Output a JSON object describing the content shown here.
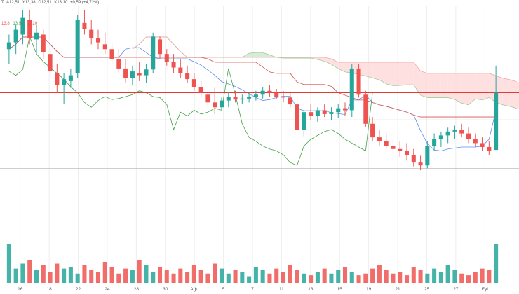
{
  "legend": {
    "symbol": "T",
    "open": "A12,51",
    "high": "Y13,38",
    "low": "D12,51",
    "close": "K13,10",
    "change": "+0,59 (+4,72%)"
  },
  "indicator_values": {
    "v1": "13,8",
    "v2": "13,93",
    "v3": "13,20"
  },
  "colors": {
    "up": "#26a69a",
    "down": "#ef5350",
    "tenkan": "#5b8def",
    "kijun": "#d9534f",
    "chikou": "#43a047",
    "cloud_bull": "#c8e6c9",
    "cloud_bear": "#ffd6d6",
    "price_line": "#e53935",
    "grid": "#eeeeee"
  },
  "chart_data": {
    "type": "candlestick",
    "x_tick_labels": [
      "16",
      "18",
      "22",
      "24",
      "28",
      "30",
      "Ağu",
      "5",
      "7",
      "11",
      "13",
      "15",
      "19",
      "21",
      "25",
      "27",
      "Eyl"
    ],
    "ylim": [
      11.6,
      14.0
    ],
    "grid": true,
    "horizontal_lines": [
      13.1,
      12.82,
      12.32
    ],
    "candles": [
      [
        13.55,
        13.7,
        13.4,
        13.62
      ],
      [
        13.62,
        13.8,
        13.5,
        13.75
      ],
      [
        13.7,
        13.95,
        13.6,
        13.88
      ],
      [
        13.85,
        13.95,
        13.6,
        13.66
      ],
      [
        13.65,
        13.8,
        13.5,
        13.72
      ],
      [
        13.7,
        13.75,
        13.45,
        13.52
      ],
      [
        13.5,
        13.55,
        13.25,
        13.32
      ],
      [
        13.3,
        13.4,
        13.1,
        13.18
      ],
      [
        13.18,
        13.3,
        12.98,
        13.24
      ],
      [
        13.22,
        13.35,
        13.15,
        13.28
      ],
      [
        13.3,
        13.9,
        13.25,
        13.85
      ],
      [
        13.82,
        13.95,
        13.7,
        13.76
      ],
      [
        13.75,
        13.85,
        13.6,
        13.66
      ],
      [
        13.66,
        13.75,
        13.55,
        13.62
      ],
      [
        13.6,
        13.72,
        13.5,
        13.55
      ],
      [
        13.55,
        13.62,
        13.4,
        13.45
      ],
      [
        13.45,
        13.55,
        13.3,
        13.35
      ],
      [
        13.35,
        13.45,
        13.2,
        13.25
      ],
      [
        13.25,
        13.38,
        13.18,
        13.32
      ],
      [
        13.3,
        13.42,
        13.22,
        13.28
      ],
      [
        13.28,
        13.4,
        13.2,
        13.34
      ],
      [
        13.34,
        13.72,
        13.3,
        13.68
      ],
      [
        13.65,
        13.68,
        13.45,
        13.5
      ],
      [
        13.5,
        13.55,
        13.38,
        13.42
      ],
      [
        13.42,
        13.5,
        13.3,
        13.36
      ],
      [
        13.36,
        13.45,
        13.25,
        13.3
      ],
      [
        13.3,
        13.38,
        13.2,
        13.24
      ],
      [
        13.24,
        13.3,
        13.12,
        13.16
      ],
      [
        13.16,
        13.22,
        13.05,
        13.1
      ],
      [
        13.08,
        13.12,
        12.95,
        13.0
      ],
      [
        13.0,
        13.15,
        12.88,
        12.95
      ],
      [
        12.95,
        13.05,
        12.92,
        13.02
      ],
      [
        13.02,
        13.1,
        12.95,
        13.06
      ],
      [
        13.06,
        13.12,
        13.0,
        13.03
      ],
      [
        13.03,
        13.08,
        12.98,
        13.04
      ],
      [
        13.04,
        13.1,
        13.0,
        13.06
      ],
      [
        13.06,
        13.12,
        13.02,
        13.08
      ],
      [
        13.08,
        13.16,
        13.04,
        13.12
      ],
      [
        13.12,
        13.18,
        13.06,
        13.1
      ],
      [
        13.1,
        13.14,
        13.04,
        13.06
      ],
      [
        13.06,
        13.12,
        13.0,
        13.05
      ],
      [
        13.05,
        13.1,
        12.95,
        12.98
      ],
      [
        12.98,
        13.05,
        12.7,
        12.72
      ],
      [
        12.72,
        12.92,
        12.65,
        12.9
      ],
      [
        12.9,
        12.98,
        12.82,
        12.86
      ],
      [
        12.86,
        12.95,
        12.8,
        12.92
      ],
      [
        12.92,
        12.98,
        12.85,
        12.88
      ],
      [
        12.88,
        12.95,
        12.82,
        12.9
      ],
      [
        12.9,
        12.98,
        12.84,
        12.94
      ],
      [
        12.94,
        13.0,
        12.86,
        12.92
      ],
      [
        12.92,
        13.4,
        12.85,
        13.35
      ],
      [
        13.35,
        13.4,
        13.05,
        13.08
      ],
      [
        13.08,
        13.12,
        12.75,
        12.78
      ],
      [
        12.78,
        12.85,
        12.6,
        12.64
      ],
      [
        12.64,
        12.72,
        12.55,
        12.6
      ],
      [
        12.6,
        12.68,
        12.52,
        12.55
      ],
      [
        12.55,
        12.62,
        12.48,
        12.52
      ],
      [
        12.52,
        12.6,
        12.44,
        12.5
      ],
      [
        12.5,
        12.58,
        12.4,
        12.46
      ],
      [
        12.46,
        12.52,
        12.34,
        12.38
      ],
      [
        12.38,
        12.45,
        12.3,
        12.35
      ],
      [
        12.35,
        12.6,
        12.32,
        12.55
      ],
      [
        12.55,
        12.68,
        12.5,
        12.62
      ],
      [
        12.62,
        12.7,
        12.54,
        12.66
      ],
      [
        12.66,
        12.74,
        12.58,
        12.7
      ],
      [
        12.7,
        12.76,
        12.62,
        12.72
      ],
      [
        12.72,
        12.78,
        12.64,
        12.68
      ],
      [
        12.68,
        12.74,
        12.58,
        12.62
      ],
      [
        12.62,
        12.68,
        12.54,
        12.58
      ],
      [
        12.58,
        12.64,
        12.5,
        12.54
      ],
      [
        12.54,
        12.6,
        12.46,
        12.5
      ],
      [
        12.51,
        13.38,
        12.51,
        13.1
      ]
    ],
    "volume": [
      120,
      45,
      60,
      70,
      40,
      55,
      35,
      60,
      45,
      50,
      30,
      55,
      40,
      35,
      65,
      50,
      30,
      45,
      40,
      70,
      55,
      35,
      50,
      40,
      30,
      45,
      35,
      55,
      40,
      30,
      60,
      45,
      30,
      40,
      35,
      20,
      50,
      40,
      30,
      45,
      35,
      55,
      40,
      30,
      25,
      35,
      45,
      30,
      40,
      50,
      35,
      25,
      30,
      45,
      55,
      40,
      30,
      35,
      25,
      50,
      40,
      30,
      45,
      35,
      55,
      40,
      30,
      25,
      35,
      45,
      40,
      120
    ]
  }
}
